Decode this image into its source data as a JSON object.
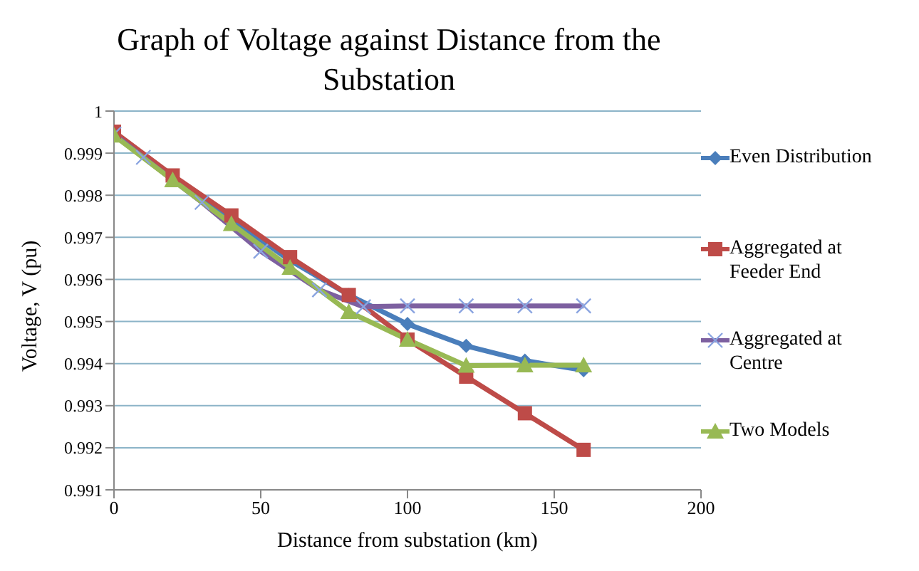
{
  "chart_data": {
    "type": "line",
    "title": "Graph of Voltage against Distance from the Substation",
    "xlabel": "Distance from substation (km)",
    "ylabel": "Voltage, V (pu)",
    "xlim": [
      0,
      200
    ],
    "xticks": [
      0,
      50,
      100,
      150,
      200
    ],
    "ylim": [
      0.991,
      1
    ],
    "yticks": [
      0.991,
      0.992,
      0.993,
      0.994,
      0.995,
      0.996,
      0.997,
      0.998,
      0.999,
      1
    ],
    "grid": "y",
    "legend": "right",
    "series": [
      {
        "name": "Even Distribution",
        "color": "#4a7ebb",
        "marker": "diamond",
        "x": [
          0,
          20,
          40,
          60,
          80,
          100,
          120,
          140,
          160
        ],
        "values": [
          0.99945,
          0.99838,
          0.99743,
          0.99645,
          0.99563,
          0.99494,
          0.99442,
          0.99407,
          0.99384
        ]
      },
      {
        "name": "Aggregated at Feeder End",
        "color": "#be4b48",
        "marker": "square",
        "x": [
          0,
          20,
          40,
          60,
          80,
          100,
          120,
          140,
          160
        ],
        "values": [
          0.99951,
          0.99847,
          0.99752,
          0.99653,
          0.99563,
          0.99457,
          0.99369,
          0.99282,
          0.99195
        ]
      },
      {
        "name": "Aggregated at Centre",
        "color": "#7d60a0",
        "marker": "cross",
        "x": [
          0,
          10,
          30,
          50,
          70,
          85,
          100,
          120,
          140,
          160
        ],
        "values": [
          0.99945,
          0.9989,
          0.99783,
          0.99667,
          0.99575,
          0.99535,
          0.99537,
          0.99537,
          0.99537,
          0.99537
        ]
      },
      {
        "name": "Two Models",
        "color": "#98b954",
        "marker": "triangle",
        "x": [
          0,
          20,
          40,
          60,
          80,
          100,
          120,
          140,
          160
        ],
        "values": [
          0.99942,
          0.99836,
          0.99732,
          0.99628,
          0.99523,
          0.99457,
          0.99395,
          0.99396,
          0.99396
        ]
      }
    ]
  }
}
